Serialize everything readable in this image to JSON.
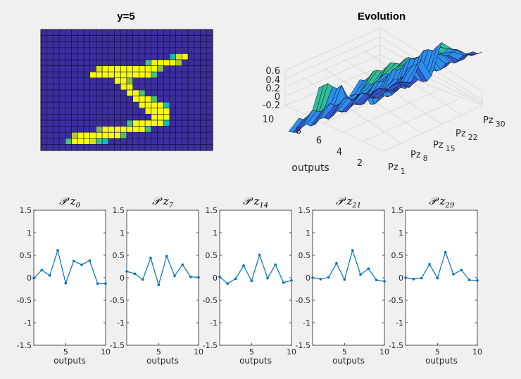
{
  "chart_data": [
    {
      "type": "heatmap",
      "title": "y=5",
      "rows": 20,
      "cols": 28,
      "colormap": "parula",
      "lit_cells": [
        [
          4,
          21,
          0.5
        ],
        [
          4,
          22,
          0.9
        ],
        [
          4,
          23,
          1
        ],
        [
          5,
          17,
          0.6
        ],
        [
          5,
          18,
          1
        ],
        [
          5,
          19,
          1
        ],
        [
          5,
          20,
          1
        ],
        [
          5,
          21,
          1
        ],
        [
          5,
          22,
          0.8
        ],
        [
          6,
          9,
          0.9
        ],
        [
          6,
          10,
          1
        ],
        [
          6,
          11,
          1
        ],
        [
          6,
          12,
          1
        ],
        [
          6,
          13,
          1
        ],
        [
          6,
          14,
          1
        ],
        [
          6,
          15,
          1
        ],
        [
          6,
          16,
          1
        ],
        [
          6,
          17,
          1
        ],
        [
          6,
          18,
          1
        ],
        [
          6,
          19,
          0.7
        ],
        [
          7,
          8,
          1
        ],
        [
          7,
          9,
          1
        ],
        [
          7,
          10,
          1
        ],
        [
          7,
          11,
          1
        ],
        [
          7,
          12,
          1
        ],
        [
          7,
          13,
          1
        ],
        [
          7,
          14,
          1
        ],
        [
          7,
          15,
          1
        ],
        [
          7,
          16,
          1
        ],
        [
          7,
          17,
          1
        ],
        [
          7,
          18,
          0.6
        ],
        [
          8,
          12,
          1
        ],
        [
          8,
          13,
          1
        ],
        [
          8,
          14,
          0.7
        ],
        [
          9,
          13,
          1
        ],
        [
          9,
          14,
          1
        ],
        [
          10,
          14,
          1
        ],
        [
          10,
          15,
          1
        ],
        [
          10,
          16,
          0.6
        ],
        [
          11,
          15,
          1
        ],
        [
          11,
          16,
          1
        ],
        [
          11,
          17,
          1
        ],
        [
          11,
          18,
          0.6
        ],
        [
          12,
          16,
          1
        ],
        [
          12,
          17,
          1
        ],
        [
          12,
          18,
          1
        ],
        [
          12,
          19,
          1
        ],
        [
          12,
          20,
          0.5
        ],
        [
          13,
          17,
          1
        ],
        [
          13,
          18,
          1
        ],
        [
          13,
          19,
          1
        ],
        [
          13,
          20,
          1
        ],
        [
          14,
          18,
          1
        ],
        [
          14,
          19,
          1
        ],
        [
          14,
          20,
          1
        ],
        [
          15,
          14,
          0.6
        ],
        [
          15,
          15,
          1
        ],
        [
          15,
          16,
          1
        ],
        [
          15,
          17,
          1
        ],
        [
          15,
          18,
          1
        ],
        [
          15,
          19,
          1
        ],
        [
          15,
          20,
          0.5
        ],
        [
          16,
          9,
          0.7
        ],
        [
          16,
          10,
          1
        ],
        [
          16,
          11,
          1
        ],
        [
          16,
          12,
          1
        ],
        [
          16,
          13,
          1
        ],
        [
          16,
          14,
          1
        ],
        [
          16,
          15,
          1
        ],
        [
          16,
          16,
          1
        ],
        [
          16,
          17,
          0.6
        ],
        [
          17,
          5,
          0.8
        ],
        [
          17,
          6,
          1
        ],
        [
          17,
          7,
          1
        ],
        [
          17,
          8,
          1
        ],
        [
          17,
          9,
          1
        ],
        [
          17,
          10,
          1
        ],
        [
          17,
          11,
          1
        ],
        [
          17,
          12,
          1
        ],
        [
          17,
          13,
          0.6
        ],
        [
          18,
          4,
          0.6
        ],
        [
          18,
          5,
          1
        ],
        [
          18,
          6,
          1
        ],
        [
          18,
          7,
          1
        ],
        [
          18,
          8,
          0.9
        ],
        [
          18,
          9,
          0.6
        ],
        [
          18,
          10,
          0.5
        ]
      ]
    },
    {
      "type": "surface",
      "title": "Evolution",
      "ylabel": "outputs",
      "zticks": [
        0.6,
        0.4,
        0.2,
        0,
        -0.2
      ],
      "yticks": [
        10,
        8,
        6,
        4,
        2
      ],
      "xticks": [
        {
          "base": "Pz",
          "sub": "1"
        },
        {
          "base": "Pz",
          "sub": "8"
        },
        {
          "base": "Pz",
          "sub": "15"
        },
        {
          "base": "Pz",
          "sub": "22"
        },
        {
          "base": "Pz",
          "sub": "30"
        }
      ]
    },
    {
      "type": "line",
      "title_base": "𝒫 z",
      "title_sub": "0",
      "xlabel": "outputs",
      "x": [
        1,
        2,
        3,
        4,
        5,
        6,
        7,
        8,
        9,
        10
      ],
      "y": [
        -0.01,
        0.17,
        0.05,
        0.61,
        -0.12,
        0.37,
        0.29,
        0.38,
        -0.13,
        -0.13
      ],
      "xlim": [
        1,
        10
      ],
      "ylim": [
        -1.5,
        1.5
      ]
    },
    {
      "type": "line",
      "title_base": "𝒫 z",
      "title_sub": "7",
      "xlabel": "outputs",
      "x": [
        1,
        2,
        3,
        4,
        5,
        6,
        7,
        8,
        9,
        10
      ],
      "y": [
        0.14,
        0.09,
        -0.04,
        0.44,
        -0.16,
        0.48,
        0.04,
        0.29,
        0.02,
        0.01
      ],
      "xlim": [
        1,
        10
      ],
      "ylim": [
        -1.5,
        1.5
      ]
    },
    {
      "type": "line",
      "title_base": "𝒫 z",
      "title_sub": "14",
      "xlabel": "outputs",
      "x": [
        1,
        2,
        3,
        4,
        5,
        6,
        7,
        8,
        9,
        10
      ],
      "y": [
        0.02,
        -0.13,
        -0.02,
        0.27,
        -0.07,
        0.51,
        -0.01,
        0.29,
        -0.11,
        -0.06
      ],
      "xlim": [
        1,
        10
      ],
      "ylim": [
        -1.5,
        1.5
      ]
    },
    {
      "type": "line",
      "title_base": "𝒫 z",
      "title_sub": "21",
      "xlabel": "outputs",
      "x": [
        1,
        2,
        3,
        4,
        5,
        6,
        7,
        8,
        9,
        10
      ],
      "y": [
        0.0,
        -0.03,
        0.01,
        0.32,
        -0.04,
        0.61,
        0.07,
        0.2,
        -0.05,
        -0.08
      ],
      "xlim": [
        1,
        10
      ],
      "ylim": [
        -1.5,
        1.5
      ]
    },
    {
      "type": "line",
      "title_base": "𝒫 z",
      "title_sub": "29",
      "xlabel": "outputs",
      "x": [
        1,
        2,
        3,
        4,
        5,
        6,
        7,
        8,
        9,
        10
      ],
      "y": [
        0.0,
        -0.03,
        -0.01,
        0.3,
        -0.01,
        0.57,
        0.08,
        0.17,
        -0.05,
        -0.06
      ],
      "xlim": [
        1,
        10
      ],
      "ylim": [
        -1.5,
        1.5
      ]
    }
  ],
  "shared": {
    "yticks": [
      "1.5",
      "1",
      "0.5",
      "0",
      "-0.5",
      "-1",
      "-1.5"
    ],
    "xticks": [
      "5",
      "10"
    ],
    "line_color": "#0072bd"
  }
}
